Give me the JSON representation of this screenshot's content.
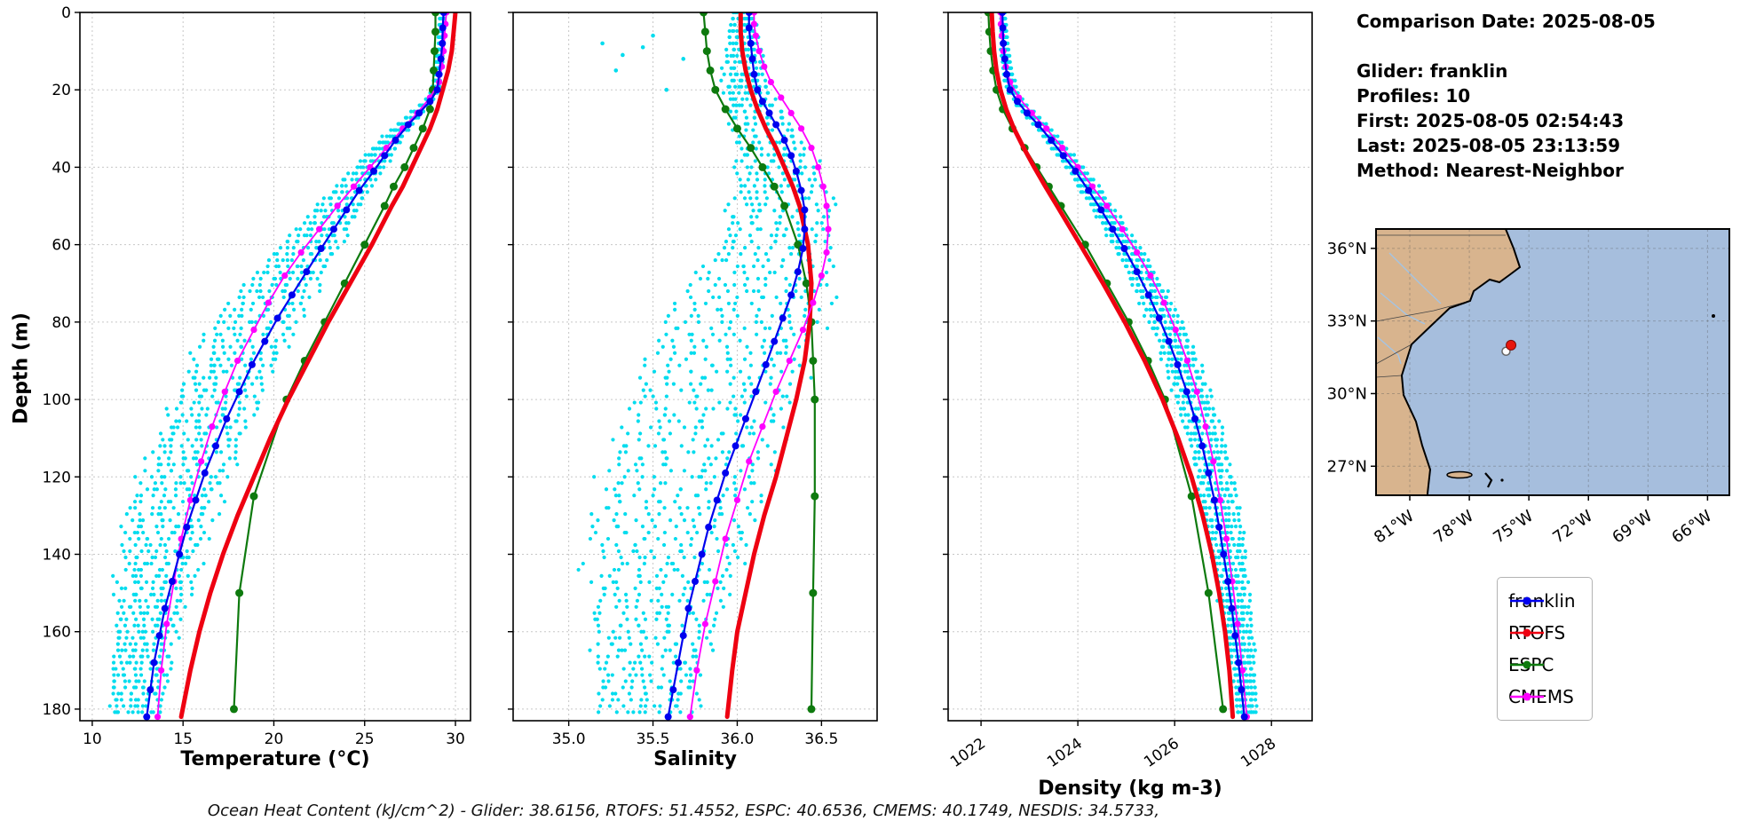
{
  "info_panel": {
    "lines": [
      "Comparison Date: 2025-08-05",
      "",
      "Glider: franklin",
      "Profiles: 10",
      "First: 2025-08-05 02:54:43",
      "Last: 2025-08-05 23:13:59",
      "Method: Nearest-Neighbor"
    ]
  },
  "legend": {
    "entries": [
      {
        "label": "franklin",
        "color": "#0000ee"
      },
      {
        "label": "RTOFS",
        "color": "#ee0011"
      },
      {
        "label": "ESPC",
        "color": "#0e7a0e"
      },
      {
        "label": "CMEMS",
        "color": "#ff00ff"
      }
    ]
  },
  "footer": {
    "text": "Ocean Heat Content (kJ/cm^2) - Glider: 38.6156,  RTOFS: 51.4552,  ESPC: 40.6536,  CMEMS: 40.1749,  NESDIS: 34.5733,"
  },
  "map": {
    "extent": {
      "lon_w": [
        82.7,
        64.9
      ],
      "lat_n": [
        25.8,
        36.8
      ]
    },
    "lon_ticks": [
      {
        "value": 81,
        "label": "81°W"
      },
      {
        "value": 78,
        "label": "78°W"
      },
      {
        "value": 75,
        "label": "75°W"
      },
      {
        "value": 72,
        "label": "72°W"
      },
      {
        "value": 69,
        "label": "69°W"
      },
      {
        "value": 66,
        "label": "66°W"
      }
    ],
    "lat_ticks": [
      {
        "value": 36,
        "label": "36°N"
      },
      {
        "value": 33,
        "label": "33°N"
      },
      {
        "value": 30,
        "label": "30°N"
      },
      {
        "value": 27,
        "label": "27°N"
      }
    ],
    "glider_marker": {
      "lat": 32.0,
      "lon_w": 75.9
    },
    "secondary_marker": {
      "lat": 31.75,
      "lon_w": 76.15
    },
    "land_color": "#d8b48e",
    "ocean_color": "#a6bedd"
  },
  "chart_data": {
    "type": "line",
    "description": "Vertical ocean profiles vs depth: glider franklin average vs RTOFS, ESPC, CMEMS models; cyan scatter = 10 individual glider profiles",
    "ylabel": "Depth (m)",
    "ylim": [
      0,
      183
    ],
    "yticks": [
      0,
      20,
      40,
      60,
      80,
      100,
      120,
      140,
      160,
      180
    ],
    "panels": [
      {
        "key": "temperature",
        "xlabel": "Temperature (°C)",
        "xlim": [
          9.32,
          30.83
        ],
        "xticks": [
          10,
          15,
          20,
          25,
          30
        ],
        "decimals": 0,
        "rotate": 0
      },
      {
        "key": "salinity",
        "xlabel": "Salinity",
        "xlim": [
          34.67,
          36.83
        ],
        "xticks": [
          35.0,
          35.5,
          36.0,
          36.5
        ],
        "decimals": 1,
        "rotate": 0
      },
      {
        "key": "density",
        "xlabel": "Density (kg m-3)",
        "xlim": [
          1021.32,
          1028.84
        ],
        "xticks": [
          1022,
          1024,
          1026,
          1028
        ],
        "decimals": 0,
        "rotate": -35
      }
    ],
    "series": [
      {
        "name": "franklin",
        "color": "#0000ee",
        "lw": 2.2,
        "marker_r": 4,
        "depths": [
          0,
          4,
          8,
          12,
          16,
          20,
          23,
          26,
          29,
          33,
          37,
          41,
          46,
          51,
          56,
          61,
          67,
          73,
          79,
          85,
          91,
          98,
          105,
          112,
          119,
          126,
          133,
          140,
          147,
          154,
          161,
          168,
          175,
          182
        ],
        "temperature": [
          29.35,
          29.3,
          29.28,
          29.2,
          29.1,
          29.0,
          28.6,
          28.0,
          27.4,
          26.7,
          26.1,
          25.5,
          24.7,
          24.0,
          23.3,
          22.6,
          21.8,
          21.0,
          20.2,
          19.5,
          18.8,
          18.1,
          17.4,
          16.8,
          16.2,
          15.7,
          15.2,
          14.8,
          14.4,
          14.0,
          13.7,
          13.4,
          13.2,
          13.0
        ],
        "salinity": [
          36.07,
          36.07,
          36.08,
          36.09,
          36.1,
          36.12,
          36.15,
          36.19,
          36.23,
          36.28,
          36.32,
          36.35,
          36.38,
          36.4,
          36.4,
          36.39,
          36.36,
          36.32,
          36.27,
          36.22,
          36.17,
          36.11,
          36.05,
          35.99,
          35.93,
          35.88,
          35.83,
          35.79,
          35.75,
          35.71,
          35.68,
          35.65,
          35.62,
          35.59
        ],
        "density": [
          1022.44,
          1022.45,
          1022.46,
          1022.49,
          1022.53,
          1022.6,
          1022.75,
          1022.95,
          1023.18,
          1023.45,
          1023.7,
          1023.95,
          1024.22,
          1024.48,
          1024.72,
          1024.96,
          1025.22,
          1025.46,
          1025.68,
          1025.88,
          1026.06,
          1026.25,
          1026.42,
          1026.57,
          1026.7,
          1026.82,
          1026.92,
          1027.01,
          1027.1,
          1027.18,
          1027.25,
          1027.32,
          1027.38,
          1027.44
        ]
      },
      {
        "name": "RTOFS",
        "color": "#ee0011",
        "lw": 5,
        "marker_r": 0,
        "depths": [
          0,
          5,
          10,
          15,
          20,
          25,
          30,
          35,
          40,
          45,
          50,
          60,
          70,
          80,
          90,
          100,
          110,
          120,
          130,
          140,
          150,
          160,
          170,
          182
        ],
        "temperature": [
          30.0,
          29.9,
          29.8,
          29.6,
          29.3,
          29.0,
          28.6,
          28.1,
          27.6,
          27.1,
          26.5,
          25.4,
          24.2,
          23.0,
          21.9,
          20.8,
          19.8,
          18.9,
          18.0,
          17.2,
          16.5,
          15.9,
          15.4,
          14.9
        ],
        "salinity": [
          36.02,
          36.02,
          36.03,
          36.05,
          36.08,
          36.12,
          36.17,
          36.23,
          36.28,
          36.33,
          36.37,
          36.42,
          36.44,
          36.43,
          36.4,
          36.35,
          36.29,
          36.23,
          36.16,
          36.1,
          36.05,
          36.0,
          35.97,
          35.94
        ],
        "density": [
          1022.22,
          1022.24,
          1022.27,
          1022.32,
          1022.4,
          1022.52,
          1022.68,
          1022.88,
          1023.1,
          1023.33,
          1023.57,
          1024.05,
          1024.52,
          1024.97,
          1025.38,
          1025.75,
          1026.07,
          1026.35,
          1026.58,
          1026.77,
          1026.92,
          1027.04,
          1027.13,
          1027.2
        ]
      },
      {
        "name": "ESPC",
        "color": "#0e7a0e",
        "lw": 2.2,
        "marker_r": 4.5,
        "depths": [
          0,
          5,
          10,
          15,
          20,
          25,
          30,
          35,
          40,
          45,
          50,
          60,
          70,
          80,
          90,
          100,
          125,
          150,
          180
        ],
        "temperature": [
          28.9,
          28.9,
          28.85,
          28.8,
          28.75,
          28.6,
          28.2,
          27.7,
          27.2,
          26.6,
          26.1,
          25.0,
          23.9,
          22.8,
          21.7,
          20.7,
          18.9,
          18.1,
          17.8
        ],
        "salinity": [
          35.8,
          35.81,
          35.82,
          35.84,
          35.87,
          35.93,
          36.0,
          36.08,
          36.15,
          36.22,
          36.28,
          36.36,
          36.41,
          36.44,
          36.45,
          36.46,
          36.46,
          36.45,
          36.44
        ],
        "density": [
          1022.15,
          1022.17,
          1022.2,
          1022.25,
          1022.32,
          1022.45,
          1022.65,
          1022.9,
          1023.15,
          1023.4,
          1023.65,
          1024.15,
          1024.6,
          1025.05,
          1025.45,
          1025.8,
          1026.35,
          1026.7,
          1027.0
        ]
      },
      {
        "name": "CMEMS",
        "color": "#ff00ff",
        "lw": 1.8,
        "marker_r": 3.6,
        "depths": [
          0,
          3,
          6,
          10,
          14,
          18,
          22,
          26,
          30,
          35,
          40,
          45,
          50,
          56,
          62,
          68,
          75,
          82,
          90,
          98,
          107,
          116,
          126,
          136,
          147,
          158,
          170,
          182
        ],
        "temperature": [
          29.5,
          29.45,
          29.4,
          29.35,
          29.25,
          29.1,
          28.6,
          27.9,
          27.1,
          26.2,
          25.3,
          24.4,
          23.5,
          22.5,
          21.5,
          20.6,
          19.7,
          18.9,
          18.0,
          17.3,
          16.6,
          16.0,
          15.4,
          14.9,
          14.5,
          14.1,
          13.8,
          13.6
        ],
        "salinity": [
          36.1,
          36.1,
          36.11,
          36.13,
          36.16,
          36.2,
          36.26,
          36.32,
          36.38,
          36.44,
          36.48,
          36.51,
          36.53,
          36.54,
          36.53,
          36.5,
          36.45,
          36.39,
          36.31,
          36.23,
          36.15,
          36.07,
          36.0,
          35.93,
          35.87,
          35.81,
          35.76,
          35.72
        ],
        "density": [
          1022.4,
          1022.41,
          1022.43,
          1022.46,
          1022.51,
          1022.6,
          1022.78,
          1023.05,
          1023.35,
          1023.68,
          1024.0,
          1024.3,
          1024.6,
          1024.92,
          1025.22,
          1025.5,
          1025.78,
          1026.02,
          1026.26,
          1026.46,
          1026.64,
          1026.8,
          1026.94,
          1027.07,
          1027.19,
          1027.3,
          1027.4,
          1027.49
        ]
      }
    ],
    "scatter": {
      "label": "glider raw profiles",
      "color": "#00dcee",
      "n_profiles": 10,
      "depth_max": 182,
      "depth_step": 1.6,
      "seed": 42,
      "spreads": {
        "temperature": {
          "surface": 0.12,
          "growth": 0.033,
          "max": 2.1,
          "bias": -0.5
        },
        "salinity": {
          "surface": 0.06,
          "growth": 0.005,
          "max": 0.42,
          "bias": -0.55
        },
        "density": {
          "surface": 0.04,
          "growth": 0.0035,
          "max": 0.33,
          "bias": 0.3
        }
      },
      "salinity_surface_outliers": [
        [
          35.2,
          8
        ],
        [
          35.32,
          11
        ],
        [
          35.5,
          6
        ],
        [
          35.28,
          15
        ],
        [
          35.68,
          12
        ],
        [
          35.44,
          9
        ],
        [
          35.58,
          20
        ]
      ]
    }
  }
}
